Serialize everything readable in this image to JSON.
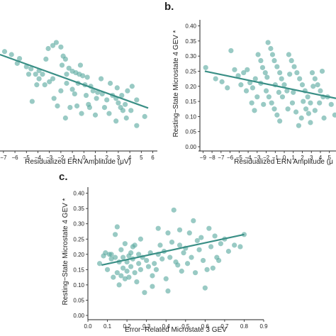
{
  "panel_labels": {
    "b": "b.",
    "c": "c."
  },
  "chart_data": [
    {
      "id": "a",
      "type": "scatter",
      "xlabel": "Residualized ERN Amplitude (μV)",
      "ylabel": "",
      "xlim": [
        -7.3,
        6.4
      ],
      "ylim": [
        0.0,
        0.42
      ],
      "xticks": [
        "−7",
        "−6",
        "−5",
        "−4",
        "−3",
        "−2",
        "−1",
        "0",
        "1",
        "2",
        "3",
        "4",
        "5",
        "6"
      ],
      "yticks": [],
      "regression": {
        "x": [
          -7.3,
          5.6
        ],
        "y": [
          0.305,
          0.128
        ]
      },
      "points": [
        [
          -6.9,
          0.315
        ],
        [
          -6.3,
          0.305
        ],
        [
          -5.6,
          0.292
        ],
        [
          -5.8,
          0.276
        ],
        [
          -5.0,
          0.265
        ],
        [
          -4.8,
          0.24
        ],
        [
          -4.6,
          0.258
        ],
        [
          -4.2,
          0.24
        ],
        [
          -3.9,
          0.252
        ],
        [
          -3.6,
          0.24
        ],
        [
          -3.9,
          0.225
        ],
        [
          -4.1,
          0.205
        ],
        [
          -3.4,
          0.205
        ],
        [
          -3.0,
          0.215
        ],
        [
          -2.7,
          0.225
        ],
        [
          -3.1,
          0.325
        ],
        [
          -2.7,
          0.335
        ],
        [
          -2.4,
          0.345
        ],
        [
          -3.3,
          0.29
        ],
        [
          -2.0,
          0.33
        ],
        [
          -1.8,
          0.3
        ],
        [
          -1.6,
          0.29
        ],
        [
          -1.9,
          0.27
        ],
        [
          -1.3,
          0.26
        ],
        [
          -1.5,
          0.24
        ],
        [
          -1.0,
          0.25
        ],
        [
          -0.7,
          0.245
        ],
        [
          -0.4,
          0.24
        ],
        [
          -0.1,
          0.235
        ],
        [
          0.3,
          0.23
        ],
        [
          -0.5,
          0.21
        ],
        [
          0.1,
          0.205
        ],
        [
          0.6,
          0.2
        ],
        [
          -1.0,
          0.19
        ],
        [
          -1.5,
          0.21
        ],
        [
          -2.0,
          0.185
        ],
        [
          -0.8,
          0.175
        ],
        [
          0.2,
          0.17
        ],
        [
          0.8,
          0.185
        ],
        [
          1.2,
          0.18
        ],
        [
          1.6,
          0.175
        ],
        [
          1.1,
          0.16
        ],
        [
          2.0,
          0.155
        ],
        [
          2.5,
          0.17
        ],
        [
          2.8,
          0.16
        ],
        [
          3.0,
          0.145
        ],
        [
          3.2,
          0.13
        ],
        [
          3.6,
          0.14
        ],
        [
          3.3,
          0.17
        ],
        [
          3.8,
          0.185
        ],
        [
          2.9,
          0.195
        ],
        [
          2.3,
          0.21
        ],
        [
          1.8,
          0.13
        ],
        [
          0.5,
          0.13
        ],
        [
          -0.6,
          0.135
        ],
        [
          -1.2,
          0.13
        ],
        [
          -2.3,
          0.135
        ],
        [
          1.0,
          0.105
        ],
        [
          2.8,
          0.085
        ],
        [
          3.7,
          0.095
        ],
        [
          4.6,
          0.07
        ],
        [
          4.1,
          0.12
        ],
        [
          4.6,
          0.155
        ],
        [
          5.3,
          0.1
        ],
        [
          4.2,
          0.2
        ],
        [
          1.5,
          0.225
        ],
        [
          -0.3,
          0.27
        ],
        [
          -2.6,
          0.16
        ],
        [
          -4.5,
          0.15
        ],
        [
          0.4,
          0.14
        ],
        [
          -1.6,
          0.095
        ],
        [
          3.4,
          0.12
        ],
        [
          2.2,
          0.11
        ],
        [
          -0.2,
          0.11
        ]
      ]
    },
    {
      "id": "b",
      "type": "scatter",
      "xlabel": "Residualized ERN Amplitude (μ",
      "ylabel": "Resting−State Microstate 4 GEV *",
      "xlim": [
        -9.5,
        6.2
      ],
      "ylim": [
        0.0,
        0.42
      ],
      "xticks": [
        "−9",
        "−8",
        "−7",
        "−6",
        "−5",
        "−4",
        "−3",
        "−2",
        "−1",
        "0",
        "1",
        "2",
        "3",
        "4",
        "5"
      ],
      "yticks": [
        "0.00",
        "0.05",
        "0.10",
        "0.15",
        "0.20",
        "0.25",
        "0.30",
        "0.35",
        "0.40"
      ],
      "regression": {
        "x": [
          -8.8,
          6.2
        ],
        "y": [
          0.25,
          0.16
        ]
      },
      "points": [
        [
          -8.7,
          0.262
        ],
        [
          -7.6,
          0.225
        ],
        [
          -6.9,
          0.215
        ],
        [
          -6.3,
          0.195
        ],
        [
          -5.9,
          0.318
        ],
        [
          -5.5,
          0.255
        ],
        [
          -5.1,
          0.235
        ],
        [
          -4.8,
          0.205
        ],
        [
          -4.5,
          0.245
        ],
        [
          -4.1,
          0.255
        ],
        [
          -3.8,
          0.212
        ],
        [
          -3.5,
          0.195
        ],
        [
          -3.2,
          0.225
        ],
        [
          -2.9,
          0.305
        ],
        [
          -2.6,
          0.285
        ],
        [
          -2.4,
          0.262
        ],
        [
          -2.1,
          0.245
        ],
        [
          -1.8,
          0.345
        ],
        [
          -1.5,
          0.325
        ],
        [
          -1.3,
          0.305
        ],
        [
          -1.1,
          0.285
        ],
        [
          -0.8,
          0.265
        ],
        [
          -0.5,
          0.245
        ],
        [
          -0.3,
          0.225
        ],
        [
          0.0,
          0.205
        ],
        [
          0.3,
          0.185
        ],
        [
          0.5,
          0.305
        ],
        [
          0.8,
          0.285
        ],
        [
          1.1,
          0.265
        ],
        [
          1.4,
          0.245
        ],
        [
          1.7,
          0.225
        ],
        [
          2.0,
          0.205
        ],
        [
          2.3,
          0.185
        ],
        [
          2.6,
          0.165
        ],
        [
          2.9,
          0.145
        ],
        [
          3.1,
          0.245
        ],
        [
          3.4,
          0.225
        ],
        [
          3.7,
          0.205
        ],
        [
          4.0,
          0.185
        ],
        [
          4.3,
          0.165
        ],
        [
          -2.0,
          0.185
        ],
        [
          -1.7,
          0.165
        ],
        [
          -1.4,
          0.145
        ],
        [
          -1.1,
          0.125
        ],
        [
          -0.8,
          0.105
        ],
        [
          -0.5,
          0.085
        ],
        [
          -2.3,
          0.14
        ],
        [
          0.4,
          0.125
        ],
        [
          0.9,
          0.145
        ],
        [
          1.3,
          0.115
        ],
        [
          1.9,
          0.095
        ],
        [
          2.4,
          0.125
        ],
        [
          2.9,
          0.08
        ],
        [
          3.4,
          0.12
        ],
        [
          3.9,
          0.145
        ],
        [
          4.4,
          0.095
        ],
        [
          4.8,
          0.165
        ],
        [
          5.2,
          0.14
        ],
        [
          5.6,
          0.105
        ],
        [
          -3.0,
          0.165
        ],
        [
          -3.6,
          0.145
        ],
        [
          -4.2,
          0.185
        ],
        [
          -1.0,
          0.205
        ],
        [
          -0.2,
          0.165
        ],
        [
          1.0,
          0.18
        ],
        [
          2.1,
          0.15
        ],
        [
          3.2,
          0.2
        ],
        [
          4.2,
          0.25
        ],
        [
          -2.6,
          0.21
        ],
        [
          0.6,
          0.24
        ],
        [
          -3.3,
          0.12
        ],
        [
          1.6,
          0.07
        ],
        [
          -1.9,
          0.23
        ],
        [
          2.7,
          0.11
        ],
        [
          -0.6,
          0.18
        ],
        [
          5.8,
          0.18
        ]
      ]
    },
    {
      "id": "c",
      "type": "scatter",
      "xlabel": "Error−Related Microstate 3 GEV",
      "ylabel": "Resting−State Microstate 4 GEV *",
      "xlim": [
        0.0,
        0.9
      ],
      "ylim": [
        0.0,
        0.42
      ],
      "xticks": [
        "0.0",
        "0.1",
        "0.2",
        "0.3",
        "0.4",
        "0.5",
        "0.6",
        "0.7",
        "0.8",
        "0.9"
      ],
      "yticks": [
        "0.00",
        "0.05",
        "0.10",
        "0.15",
        "0.20",
        "0.25",
        "0.30",
        "0.35",
        "0.40"
      ],
      "regression": {
        "x": [
          0.07,
          0.8
        ],
        "y": [
          0.165,
          0.265
        ]
      },
      "points": [
        [
          0.06,
          0.17
        ],
        [
          0.08,
          0.195
        ],
        [
          0.09,
          0.205
        ],
        [
          0.1,
          0.15
        ],
        [
          0.11,
          0.2
        ],
        [
          0.12,
          0.185
        ],
        [
          0.13,
          0.125
        ],
        [
          0.14,
          0.265
        ],
        [
          0.14,
          0.19
        ],
        [
          0.15,
          0.29
        ],
        [
          0.15,
          0.14
        ],
        [
          0.16,
          0.1
        ],
        [
          0.16,
          0.175
        ],
        [
          0.17,
          0.215
        ],
        [
          0.17,
          0.13
        ],
        [
          0.18,
          0.155
        ],
        [
          0.18,
          0.19
        ],
        [
          0.19,
          0.235
        ],
        [
          0.19,
          0.12
        ],
        [
          0.2,
          0.175
        ],
        [
          0.2,
          0.145
        ],
        [
          0.21,
          0.195
        ],
        [
          0.21,
          0.125
        ],
        [
          0.22,
          0.205
        ],
        [
          0.22,
          0.16
        ],
        [
          0.23,
          0.185
        ],
        [
          0.23,
          0.225
        ],
        [
          0.24,
          0.14
        ],
        [
          0.24,
          0.23
        ],
        [
          0.25,
          0.11
        ],
        [
          0.26,
          0.2
        ],
        [
          0.26,
          0.17
        ],
        [
          0.27,
          0.15
        ],
        [
          0.28,
          0.19
        ],
        [
          0.29,
          0.075
        ],
        [
          0.3,
          0.18
        ],
        [
          0.31,
          0.16
        ],
        [
          0.32,
          0.205
        ],
        [
          0.33,
          0.13
        ],
        [
          0.34,
          0.17
        ],
        [
          0.35,
          0.15
        ],
        [
          0.36,
          0.2
        ],
        [
          0.37,
          0.23
        ],
        [
          0.38,
          0.185
        ],
        [
          0.39,
          0.21
        ],
        [
          0.4,
          0.12
        ],
        [
          0.41,
          0.08
        ],
        [
          0.42,
          0.19
        ],
        [
          0.43,
          0.24
        ],
        [
          0.44,
          0.345
        ],
        [
          0.45,
          0.175
        ],
        [
          0.46,
          0.165
        ],
        [
          0.47,
          0.23
        ],
        [
          0.48,
          0.145
        ],
        [
          0.49,
          0.205
        ],
        [
          0.5,
          0.22
        ],
        [
          0.51,
          0.17
        ],
        [
          0.52,
          0.27
        ],
        [
          0.53,
          0.19
        ],
        [
          0.54,
          0.31
        ],
        [
          0.55,
          0.14
        ],
        [
          0.56,
          0.245
        ],
        [
          0.57,
          0.215
        ],
        [
          0.58,
          0.255
        ],
        [
          0.59,
          0.18
        ],
        [
          0.6,
          0.09
        ],
        [
          0.61,
          0.15
        ],
        [
          0.62,
          0.285
        ],
        [
          0.63,
          0.225
        ],
        [
          0.64,
          0.155
        ],
        [
          0.65,
          0.26
        ],
        [
          0.66,
          0.19
        ],
        [
          0.67,
          0.18
        ],
        [
          0.68,
          0.235
        ],
        [
          0.7,
          0.25
        ],
        [
          0.72,
          0.21
        ],
        [
          0.75,
          0.23
        ],
        [
          0.78,
          0.225
        ],
        [
          0.8,
          0.265
        ],
        [
          0.41,
          0.27
        ],
        [
          0.36,
          0.285
        ],
        [
          0.47,
          0.28
        ],
        [
          0.27,
          0.25
        ],
        [
          0.12,
          0.2
        ],
        [
          0.33,
          0.095
        ]
      ]
    }
  ]
}
